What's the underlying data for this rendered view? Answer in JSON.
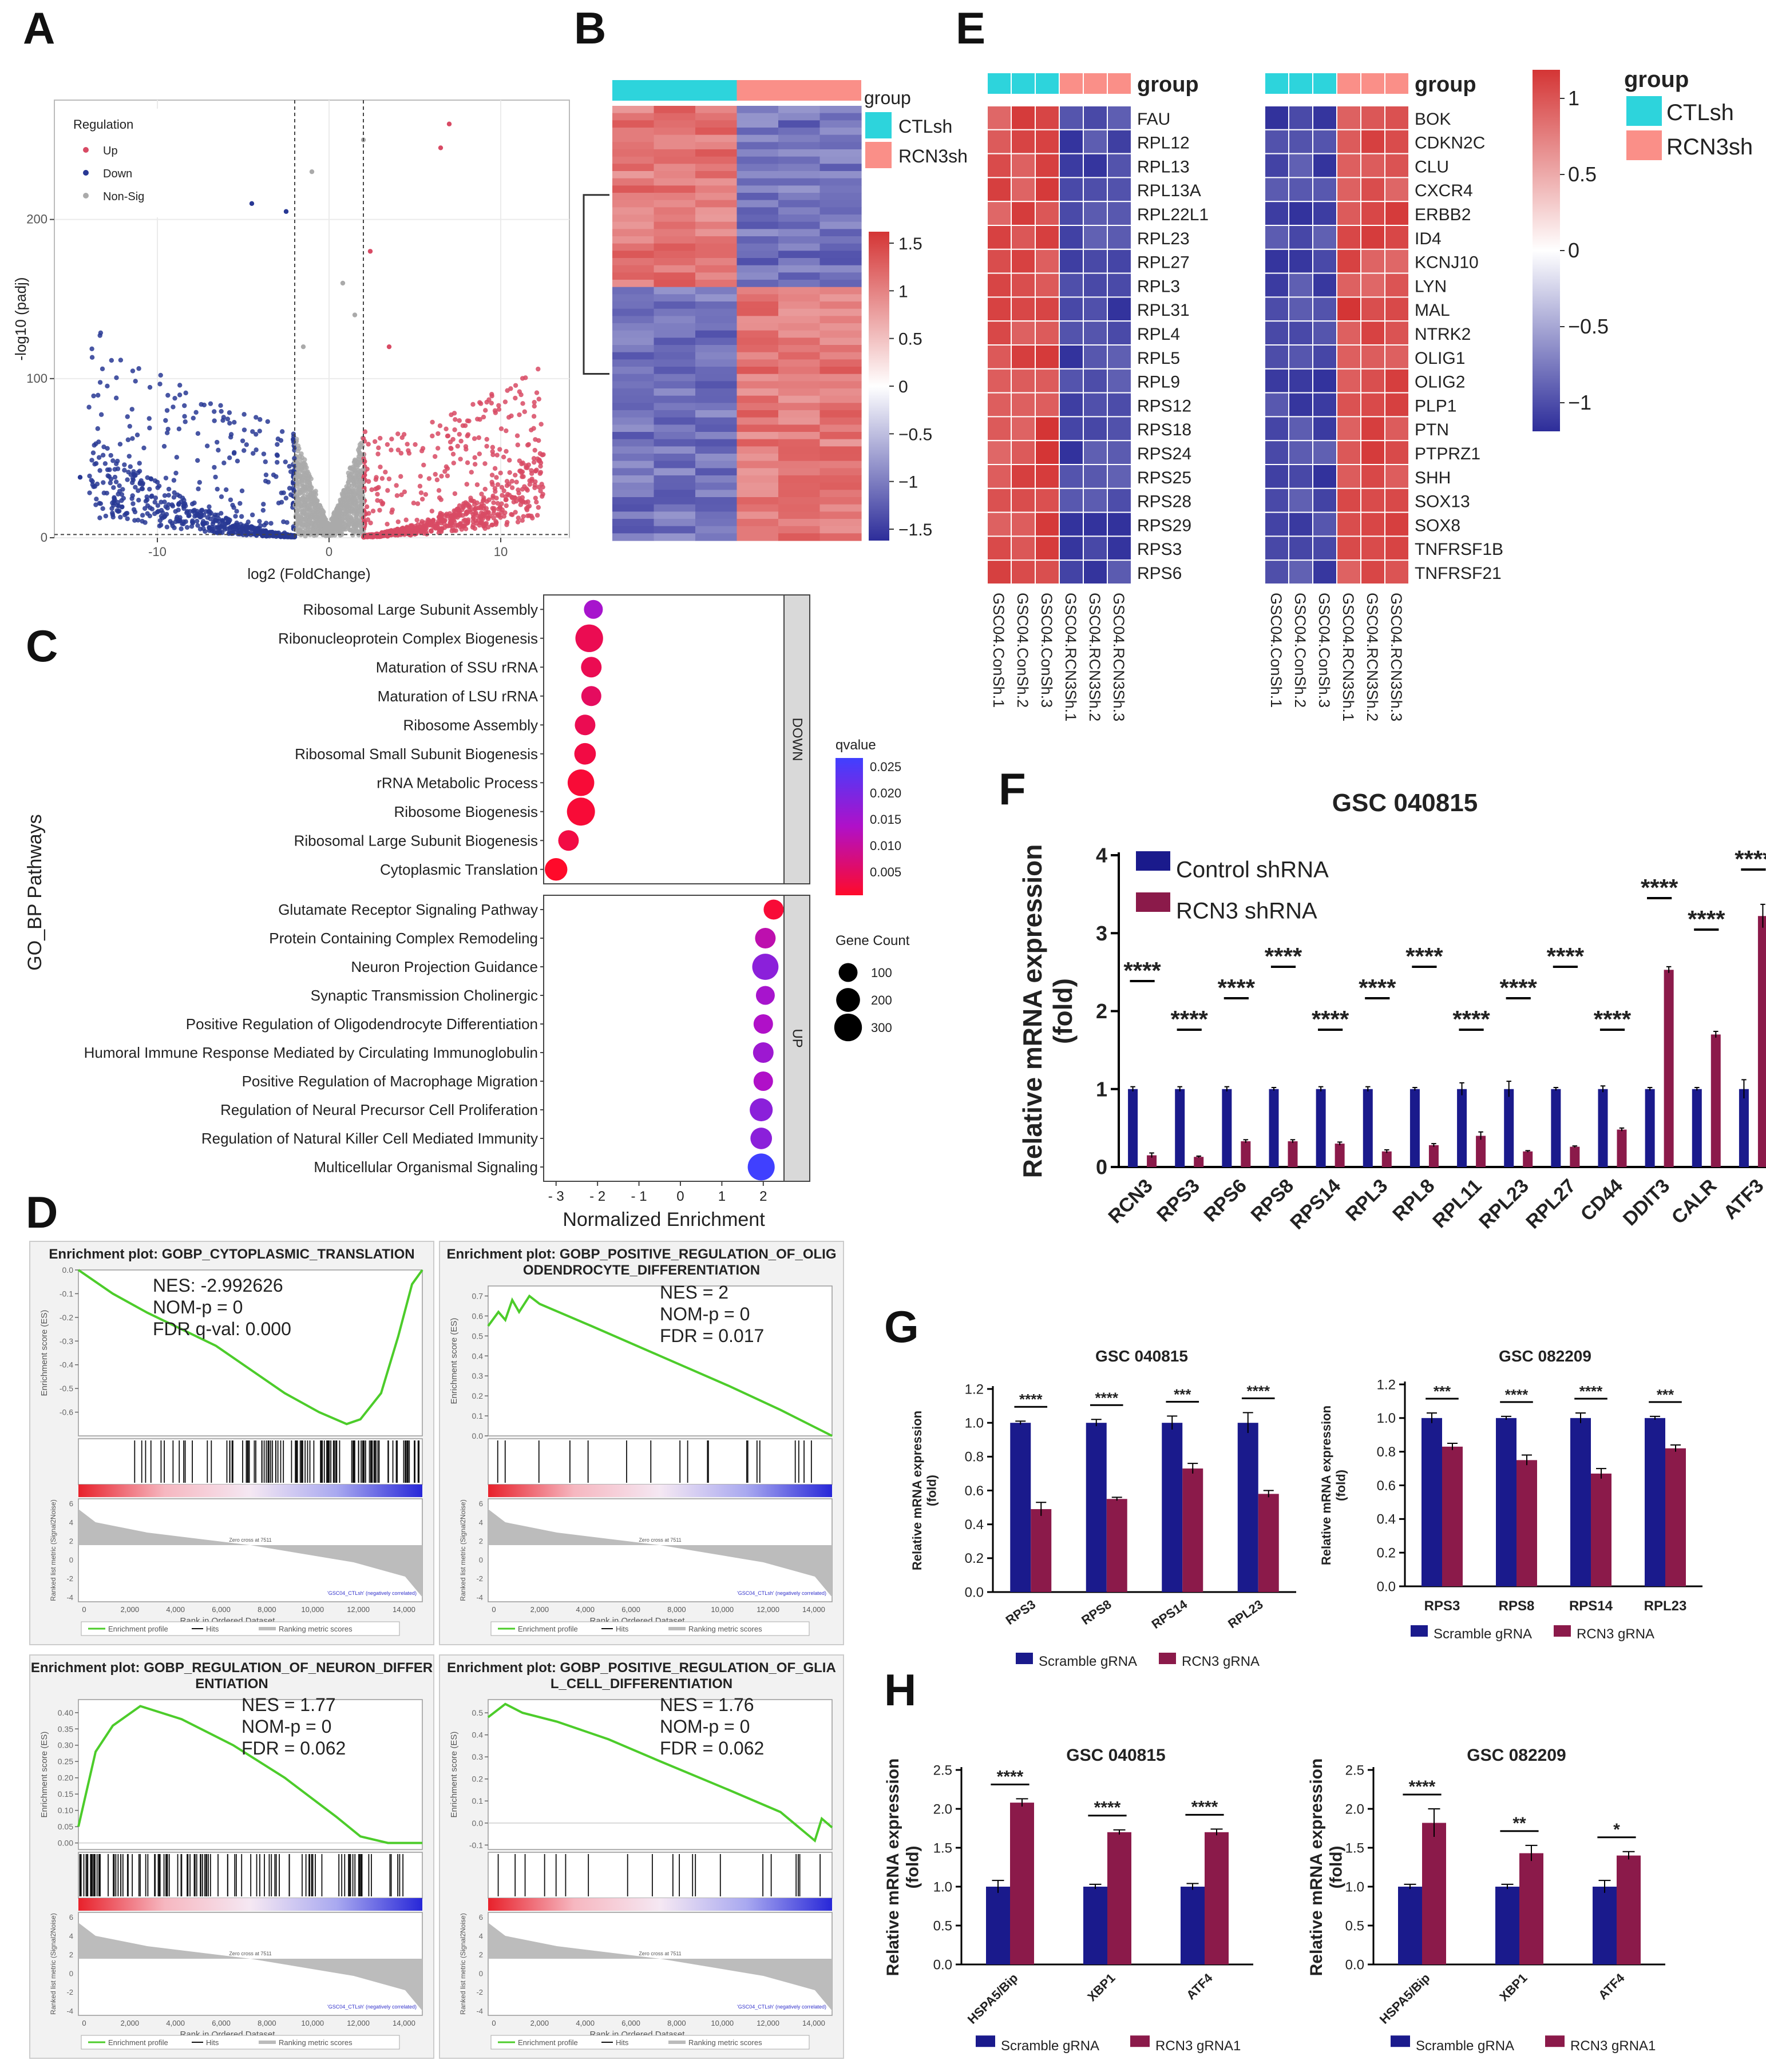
{
  "panel_labels": [
    "A",
    "B",
    "C",
    "D",
    "E",
    "F",
    "G",
    "H"
  ],
  "colors": {
    "navy": "#1a1a8c",
    "maroon": "#8b1a4a",
    "cyan": "#2dd4dc",
    "salmon": "#fa8f88",
    "heat_red": "#d43535",
    "heat_blue": "#2d2d9a",
    "up": "#d84a64",
    "down": "#283894",
    "nonsig": "#aaaaaa",
    "gsea_green": "#4ccc2a"
  },
  "chart_data": [
    {
      "id": "A",
      "type": "scatter",
      "subtype": "volcano",
      "xlabel": "log2 (FoldChange)",
      "ylabel": "-log10 (padj)",
      "xlim": [
        -16,
        14
      ],
      "ylim": [
        0,
        275
      ],
      "xticks": [
        "-10",
        "0",
        "10"
      ],
      "yticks": [
        "0",
        "100",
        "200"
      ],
      "thresholds": {
        "log2fc": [
          -2,
          2
        ],
        "padj_line": 2
      },
      "legend": {
        "title": "Regulation",
        "position": "top-left",
        "entries": [
          "Up",
          "Down",
          "Non-Sig"
        ]
      },
      "grid": true,
      "points_note": "thousands of genes; representative points regenerated"
    },
    {
      "id": "B",
      "type": "heatmap",
      "legend_title": "group",
      "groups": [
        "CTLsh",
        "RCN3sh"
      ],
      "scale_ticks": [
        "1.5",
        "1",
        "0.5",
        "0",
        "−0.5",
        "−1",
        "−1.5"
      ],
      "scale_range": [
        -1.5,
        1.5
      ],
      "columns": 6,
      "blocks": {
        "top_ctl": 1.0,
        "top_rcn": -1.0,
        "bottom_ctl": -1.0,
        "bottom_rcn": 1.0
      }
    },
    {
      "id": "C",
      "type": "scatter",
      "subtype": "dotplot",
      "xlabel": "Normalized Enrichment",
      "ylabel": "GO_BP Pathways",
      "xlim": [
        -3.3,
        2.5
      ],
      "xticks": [
        "- 3",
        "- 2",
        "- 1",
        "0",
        "1",
        "2"
      ],
      "facets": [
        "DOWN",
        "UP"
      ],
      "down_terms": [
        {
          "term": "Ribosomal Large Subunit Assembly",
          "nes": -2.1,
          "count": 100,
          "q": 0.015
        },
        {
          "term": "Ribonucleoprotein Complex Biogenesis",
          "nes": -2.2,
          "count": 300,
          "q": 0.005
        },
        {
          "term": "Maturation of SSU rRNA",
          "nes": -2.15,
          "count": 130,
          "q": 0.005
        },
        {
          "term": "Maturation of LSU rRNA",
          "nes": -2.15,
          "count": 120,
          "q": 0.006
        },
        {
          "term": "Ribosome Assembly",
          "nes": -2.3,
          "count": 130,
          "q": 0.005
        },
        {
          "term": "Ribosomal Small Subunit Biogenesis",
          "nes": -2.3,
          "count": 150,
          "q": 0.004
        },
        {
          "term": "rRNA Metabolic Process",
          "nes": -2.4,
          "count": 270,
          "q": 0.003
        },
        {
          "term": "Ribosome Biogenesis",
          "nes": -2.4,
          "count": 310,
          "q": 0.003
        },
        {
          "term": "Ribosomal Large Subunit Biogenesis",
          "nes": -2.7,
          "count": 130,
          "q": 0.004
        },
        {
          "term": "Cytoplasmic Translation",
          "nes": -3.0,
          "count": 170,
          "q": 0.002
        }
      ],
      "up_terms": [
        {
          "term": "Glutamate Receptor Signaling Pathway",
          "nes": 2.25,
          "count": 120,
          "q": 0.003
        },
        {
          "term": "Protein Containing Complex Remodeling",
          "nes": 2.05,
          "count": 130,
          "q": 0.012
        },
        {
          "term": "Neuron Projection Guidance",
          "nes": 2.05,
          "count": 260,
          "q": 0.018
        },
        {
          "term": "Synaptic Transmission Cholinergic",
          "nes": 2.05,
          "count": 100,
          "q": 0.015
        },
        {
          "term": "Positive Regulation of Oligodendrocyte Differentiation",
          "nes": 2.0,
          "count": 110,
          "q": 0.014
        },
        {
          "term": "Humoral Immune Response Mediated by Circulating Immunoglobulin",
          "nes": 2.0,
          "count": 130,
          "q": 0.016
        },
        {
          "term": "Positive Regulation of Macrophage Migration",
          "nes": 2.0,
          "count": 110,
          "q": 0.014
        },
        {
          "term": "Regulation of Neural Precursor Cell Proliferation",
          "nes": 1.95,
          "count": 180,
          "q": 0.018
        },
        {
          "term": "Regulation of Natural Killer Cell Mediated Immunity",
          "nes": 1.95,
          "count": 150,
          "q": 0.018
        },
        {
          "term": "Multicellular Organismal Signaling",
          "nes": 1.95,
          "count": 280,
          "q": 0.026
        }
      ],
      "qvalue_legend": {
        "title": "qvalue",
        "ticks": [
          "0.025",
          "0.020",
          "0.015",
          "0.010",
          "0.005"
        ]
      },
      "count_legend": {
        "title": "Gene Count",
        "entries": [
          "100",
          "200",
          "300"
        ]
      }
    },
    {
      "id": "D",
      "type": "line",
      "subtype": "gsea",
      "plots": [
        {
          "title": "Enrichment plot: GOBP_CYTOPLASMIC_TRANSLATION",
          "nes": "NES: -2.992626",
          "p": "NOM-p = 0",
          "fdr": "FDR q-val: 0.000",
          "es_ticks": [
            "0.0",
            "-0.1",
            "-0.2",
            "-0.3",
            "-0.4",
            "-0.5",
            "-0.6"
          ],
          "ylim": [
            -0.7,
            0.0
          ],
          "curve": [
            [
              0,
              0
            ],
            [
              0.1,
              -0.1
            ],
            [
              0.2,
              -0.18
            ],
            [
              0.3,
              -0.25
            ],
            [
              0.4,
              -0.32
            ],
            [
              0.5,
              -0.42
            ],
            [
              0.6,
              -0.52
            ],
            [
              0.7,
              -0.6
            ],
            [
              0.78,
              -0.65
            ],
            [
              0.82,
              -0.63
            ],
            [
              0.88,
              -0.52
            ],
            [
              0.93,
              -0.28
            ],
            [
              0.97,
              -0.06
            ],
            [
              1.0,
              0
            ]
          ],
          "hits_region": [
            0.05,
            1.0
          ]
        },
        {
          "title": "Enrichment plot: GOBP_POSITIVE_REGULATION_OF_OLIGODENDROCYTE_DIFFERENTIATION",
          "nes": "NES = 2",
          "p": "NOM-p = 0",
          "fdr": "FDR = 0.017",
          "es_ticks": [
            "0.7",
            "0.6",
            "0.5",
            "0.4",
            "0.3",
            "0.2",
            "0.1",
            "0.0"
          ],
          "ylim": [
            0.0,
            0.75
          ],
          "curve": [
            [
              0,
              0.55
            ],
            [
              0.03,
              0.62
            ],
            [
              0.05,
              0.58
            ],
            [
              0.07,
              0.68
            ],
            [
              0.09,
              0.62
            ],
            [
              0.12,
              0.7
            ],
            [
              0.15,
              0.66
            ],
            [
              0.3,
              0.55
            ],
            [
              0.5,
              0.4
            ],
            [
              0.7,
              0.25
            ],
            [
              0.85,
              0.13
            ],
            [
              1.0,
              0.0
            ]
          ],
          "hits_region": [
            0.02,
            0.95
          ]
        },
        {
          "title": "Enrichment plot: GOBP_REGULATION_OF_NEURON_DIFFERENTIATION",
          "nes": "NES = 1.77",
          "p": "NOM-p = 0",
          "fdr": "FDR = 0.062",
          "es_ticks": [
            "0.40",
            "0.35",
            "0.30",
            "0.25",
            "0.20",
            "0.15",
            "0.10",
            "0.05",
            "0.00"
          ],
          "ylim": [
            -0.02,
            0.44
          ],
          "curve": [
            [
              0,
              0.05
            ],
            [
              0.05,
              0.28
            ],
            [
              0.1,
              0.36
            ],
            [
              0.18,
              0.42
            ],
            [
              0.3,
              0.38
            ],
            [
              0.45,
              0.3
            ],
            [
              0.6,
              0.2
            ],
            [
              0.75,
              0.08
            ],
            [
              0.82,
              0.02
            ],
            [
              0.9,
              0.0
            ],
            [
              1.0,
              0.0
            ]
          ],
          "hits_region": [
            0.0,
            1.0
          ]
        },
        {
          "title": "Enrichment plot: GOBP_POSITIVE_REGULATION_OF_GLIAL_CELL_DIFFERENTIATION",
          "nes": "NES = 1.76",
          "p": "NOM-p = 0",
          "fdr": "FDR = 0.062",
          "es_ticks": [
            "0.5",
            "0.4",
            "0.3",
            "0.2",
            "0.1",
            "0.0",
            "-0.1"
          ],
          "ylim": [
            -0.12,
            0.56
          ],
          "curve": [
            [
              0,
              0.48
            ],
            [
              0.05,
              0.54
            ],
            [
              0.1,
              0.5
            ],
            [
              0.2,
              0.46
            ],
            [
              0.35,
              0.38
            ],
            [
              0.5,
              0.28
            ],
            [
              0.7,
              0.15
            ],
            [
              0.85,
              0.05
            ],
            [
              0.95,
              -0.08
            ],
            [
              0.97,
              0.02
            ],
            [
              1.0,
              -0.02
            ]
          ],
          "hits_region": [
            0.02,
            0.98
          ]
        }
      ],
      "ylabel_es": "Enrichment score (ES)",
      "ylabel_rank": "Ranked list metric (Signal2Noise)",
      "xlabel": "Rank in Ordered Dataset",
      "xticks": [
        "0",
        "2,000",
        "4,000",
        "6,000",
        "8,000",
        "10,000",
        "12,000",
        "14,000"
      ],
      "rank_ticks": [
        "6",
        "4",
        "2",
        "0",
        "-2",
        "-4"
      ],
      "pos_label": "'GSC04_RCN3sh' (positively correlated)",
      "neg_label": "'GSC04_CTLsh' (negatively correlated)",
      "zero_cross": "Zero cross at 7511",
      "legend": [
        "Enrichment profile",
        "Hits",
        "Ranking metric scores"
      ]
    },
    {
      "id": "E",
      "type": "heatmap",
      "left_genes": [
        "FAU",
        "RPL12",
        "RPL13",
        "RPL13A",
        "RPL22L1",
        "RPL23",
        "RPL27",
        "RPL3",
        "RPL31",
        "RPL4",
        "RPL5",
        "RPL9",
        "RPS12",
        "RPS18",
        "RPS24",
        "RPS25",
        "RPS28",
        "RPS29",
        "RPS3",
        "RPS6"
      ],
      "right_genes": [
        "BOK",
        "CDKN2C",
        "CLU",
        "CXCR4",
        "ERBB2",
        "ID4",
        "KCNJ10",
        "LYN",
        "MAL",
        "NTRK2",
        "OLIG1",
        "OLIG2",
        "PLP1",
        "PTN",
        "PTPRZ1",
        "SHH",
        "SOX13",
        "SOX8",
        "TNFRSF1B",
        "TNFRSF21"
      ],
      "samples_left": [
        "GSC04.ConSh.1",
        "GSC04.ConSh.2",
        "GSC04.ConSh.3",
        "GSC04.RCN3Sh.1",
        "GSC04.RCN3Sh.2",
        "GSC04.RCN3Sh.3"
      ],
      "samples_right": [
        "GSC04.ConSh.1",
        "GSC04.ConSh.2",
        "GSC04.ConSh.3",
        "GSC04.RCN3Sh.1",
        "GSC04.RCN3Sh.2",
        "GSC04.RCN3Sh.3"
      ],
      "group_label": "group",
      "legend_title": "group",
      "groups": [
        "CTLsh",
        "RCN3sh"
      ],
      "scale_ticks": [
        "1",
        "0.5",
        "0",
        "−0.5",
        "−1"
      ],
      "scale_range": [
        -1.1,
        1.1
      ]
    },
    {
      "id": "F",
      "type": "bar",
      "title": "GSC 040815",
      "ylabel": "Relative mRNA expression\n(fold)",
      "ylim": [
        0,
        4
      ],
      "yticks": [
        "0",
        "1",
        "2",
        "3",
        "4"
      ],
      "categories": [
        "RCN3",
        "RPS3",
        "RPS6",
        "RPS8",
        "RPS14",
        "RPL3",
        "RPL8",
        "RPL11",
        "RPL23",
        "RPL27",
        "CD44",
        "DDIT3",
        "CALR",
        "ATF3"
      ],
      "series": [
        {
          "name": "Control shRNA",
          "values": [
            1,
            1,
            1,
            1,
            1,
            1,
            1,
            1,
            1,
            1,
            1,
            1,
            1,
            1
          ],
          "err": [
            0.03,
            0.03,
            0.03,
            0.02,
            0.03,
            0.03,
            0.02,
            0.08,
            0.1,
            0.02,
            0.04,
            0.02,
            0.02,
            0.12
          ]
        },
        {
          "name": "RCN3 shRNA",
          "values": [
            0.15,
            0.13,
            0.33,
            0.33,
            0.3,
            0.2,
            0.28,
            0.4,
            0.2,
            0.26,
            0.48,
            2.53,
            1.7,
            3.22
          ],
          "err": [
            0.03,
            0.01,
            0.02,
            0.02,
            0.02,
            0.02,
            0.02,
            0.05,
            0.01,
            0.01,
            0.02,
            0.04,
            0.04,
            0.15
          ]
        }
      ],
      "significance": [
        "****",
        "****",
        "****",
        "****",
        "****",
        "****",
        "****",
        "****",
        "****",
        "****",
        "****",
        "****",
        "****",
        "****"
      ],
      "legend_position": "top-left"
    },
    {
      "id": "G1",
      "type": "bar",
      "title": "GSC 040815",
      "ylabel": "Relative mRNA expression\n(fold)",
      "ylim": [
        0,
        1.2
      ],
      "yticks": [
        "0.0",
        "0.2",
        "0.4",
        "0.6",
        "0.8",
        "1.0",
        "1.2"
      ],
      "categories": [
        "RPS3",
        "RPS8",
        "RPS14",
        "RPL23"
      ],
      "series": [
        {
          "name": "Scramble gRNA",
          "values": [
            1.0,
            1.0,
            1.0,
            1.0
          ],
          "err": [
            0.01,
            0.02,
            0.04,
            0.06
          ]
        },
        {
          "name": "RCN3 gRNA",
          "values": [
            0.49,
            0.55,
            0.73,
            0.58
          ],
          "err": [
            0.04,
            0.01,
            0.03,
            0.02
          ]
        }
      ],
      "significance": [
        "****",
        "****",
        "***",
        "****"
      ]
    },
    {
      "id": "G2",
      "type": "bar",
      "title": "GSC 082209",
      "ylabel": "Relative mRNA expression\n(fold)",
      "ylim": [
        0,
        1.2
      ],
      "yticks": [
        "0.0",
        "0.2",
        "0.4",
        "0.6",
        "0.8",
        "1.0",
        "1.2"
      ],
      "categories": [
        "RPS3",
        "RPS8",
        "RPS14",
        "RPL23"
      ],
      "series": [
        {
          "name": "Scramble gRNA",
          "values": [
            1.0,
            1.0,
            1.0,
            1.0
          ],
          "err": [
            0.03,
            0.01,
            0.03,
            0.01
          ]
        },
        {
          "name": "RCN3 gRNA",
          "values": [
            0.83,
            0.75,
            0.67,
            0.82
          ],
          "err": [
            0.02,
            0.03,
            0.03,
            0.02
          ]
        }
      ],
      "significance": [
        "***",
        "****",
        "****",
        "***"
      ]
    },
    {
      "id": "H1",
      "type": "bar",
      "title": "GSC 040815",
      "ylabel": "Relative mRNA expression\n(fold)",
      "ylim": [
        0,
        2.5
      ],
      "yticks": [
        "0.0",
        "0.5",
        "1.0",
        "1.5",
        "2.0",
        "2.5"
      ],
      "categories": [
        "HSPA5/Bip",
        "XBP1",
        "ATF4"
      ],
      "series": [
        {
          "name": "Scramble gRNA",
          "values": [
            1.0,
            1.0,
            1.0
          ],
          "err": [
            0.08,
            0.03,
            0.04
          ]
        },
        {
          "name": "RCN3 gRNA1",
          "values": [
            2.08,
            1.7,
            1.7
          ],
          "err": [
            0.05,
            0.03,
            0.04
          ]
        }
      ],
      "significance": [
        "****",
        "****",
        "****"
      ]
    },
    {
      "id": "H2",
      "type": "bar",
      "title": "GSC 082209",
      "ylabel": "Relative mRNA expression\n(fold)",
      "ylim": [
        0,
        2.5
      ],
      "yticks": [
        "0.0",
        "0.5",
        "1.0",
        "1.5",
        "2.0",
        "2.5"
      ],
      "categories": [
        "HSPA5/Bip",
        "XBP1",
        "ATF4"
      ],
      "series": [
        {
          "name": "Scramble gRNA",
          "values": [
            1.0,
            1.0,
            1.0
          ],
          "err": [
            0.03,
            0.03,
            0.08
          ]
        },
        {
          "name": "RCN3 gRNA1",
          "values": [
            1.82,
            1.43,
            1.4
          ],
          "err": [
            0.18,
            0.1,
            0.05
          ]
        }
      ],
      "significance": [
        "****",
        "**",
        "*"
      ]
    }
  ]
}
